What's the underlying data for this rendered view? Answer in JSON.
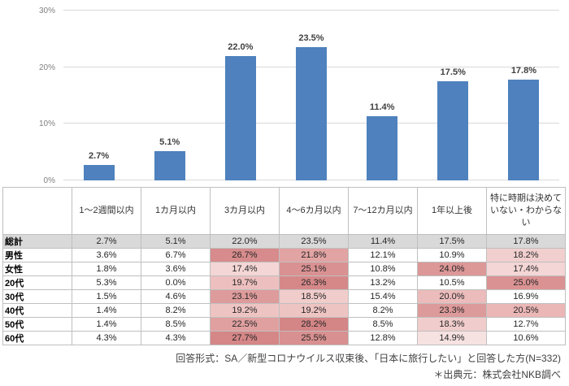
{
  "chart_data": {
    "type": "bar",
    "title": "",
    "xlabel": "",
    "ylabel": "",
    "categories": [
      "1～2週間以内",
      "1カ月以内",
      "3カ月以内",
      "4～6カ月以内",
      "7～12カ月以内",
      "1年以上後",
      "特に時期は決めていない・わからない"
    ],
    "values": [
      2.7,
      5.1,
      22.0,
      23.5,
      11.4,
      17.5,
      17.8
    ],
    "labels": [
      "2.7%",
      "5.1%",
      "22.0%",
      "23.5%",
      "11.4%",
      "17.5%",
      "17.8%"
    ],
    "ylim": [
      0,
      30
    ],
    "yticks": [
      {
        "value": 0,
        "label": "0%"
      },
      {
        "value": 10,
        "label": "10%"
      },
      {
        "value": 20,
        "label": "20%"
      },
      {
        "value": 30,
        "label": "30%"
      }
    ],
    "grid": true,
    "legend": false,
    "bar_color": "#4E81BD",
    "gridline_color": "#D9D9D9",
    "axis_label_color": "#808080"
  },
  "table": {
    "columns": [
      "1～2週間以内",
      "1カ月以内",
      "3カ月以内",
      "4～6カ月以内",
      "7～12カ月以内",
      "1年以上後",
      "特に時期は決めていない・わからない"
    ],
    "total_row_bg": "#D9D9D9",
    "border_color": "#BFBFBF",
    "rows": [
      {
        "label": "総計",
        "row_bg": "#D9D9D9",
        "values": [
          "2.7%",
          "5.1%",
          "22.0%",
          "23.5%",
          "11.4%",
          "17.5%",
          "17.8%"
        ],
        "bg": [
          "#D9D9D9",
          "#D9D9D9",
          "#D9D9D9",
          "#D9D9D9",
          "#D9D9D9",
          "#D9D9D9",
          "#D9D9D9"
        ]
      },
      {
        "label": "男性",
        "values": [
          "3.6%",
          "6.7%",
          "26.7%",
          "21.8%",
          "12.1%",
          "10.9%",
          "18.2%"
        ],
        "bg": [
          "",
          "",
          "#D78B8C",
          "#E2A3A3",
          "",
          "",
          "#F1CFCE"
        ]
      },
      {
        "label": "女性",
        "values": [
          "1.8%",
          "3.6%",
          "17.4%",
          "25.1%",
          "10.8%",
          "24.0%",
          "17.4%"
        ],
        "bg": [
          "",
          "",
          "#F3D6D5",
          "#DA9192",
          "",
          "#DC9797",
          "#F3D6D5"
        ]
      },
      {
        "label": "20代",
        "values": [
          "5.3%",
          "0.0%",
          "19.7%",
          "26.3%",
          "13.2%",
          "10.5%",
          "25.0%"
        ],
        "bg": [
          "",
          "",
          "#EDC0BF",
          "#D68889",
          "",
          "",
          "#DB9293"
        ]
      },
      {
        "label": "30代",
        "values": [
          "1.5%",
          "4.6%",
          "23.1%",
          "18.5%",
          "15.4%",
          "20.0%",
          "16.9%"
        ],
        "bg": [
          "",
          "",
          "#DE9B9B",
          "#F0CCCB",
          "",
          "#EBBCBB",
          ""
        ]
      },
      {
        "label": "40代",
        "values": [
          "1.4%",
          "8.2%",
          "19.2%",
          "19.2%",
          "8.2%",
          "23.3%",
          "20.5%"
        ],
        "bg": [
          "",
          "",
          "#EEC4C3",
          "#EEC4C3",
          "",
          "#DD9A9A",
          "#EAB7B6"
        ]
      },
      {
        "label": "50代",
        "values": [
          "1.4%",
          "8.5%",
          "22.5%",
          "28.2%",
          "8.5%",
          "18.3%",
          "12.7%"
        ],
        "bg": [
          "",
          "",
          "#E0A0A0",
          "#D48586",
          "",
          "#F0CDCC",
          ""
        ]
      },
      {
        "label": "60代",
        "values": [
          "4.3%",
          "4.3%",
          "27.7%",
          "25.5%",
          "12.8%",
          "14.9%",
          "10.6%"
        ],
        "bg": [
          "",
          "",
          "#D58687",
          "#D99090",
          "",
          "#F6E2E1",
          ""
        ]
      }
    ]
  },
  "footnotes": {
    "response_format": "回答形式：SA／新型コロナウイルス収束後、「日本に旅行したい」と回答した方(N=332)",
    "source": "＊出典元：株式会社NKB調べ"
  }
}
